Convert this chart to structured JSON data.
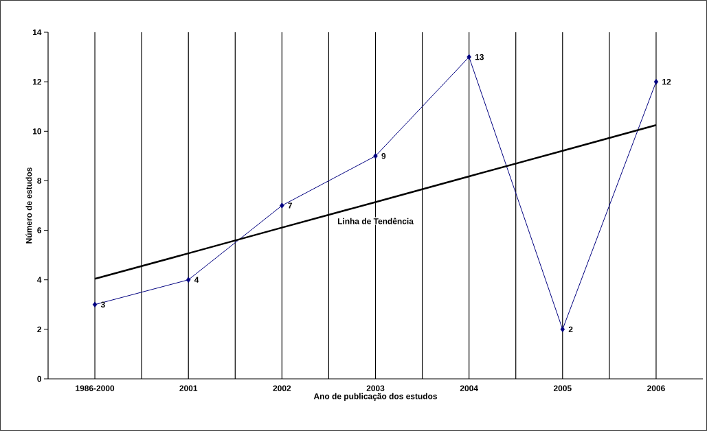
{
  "chart_data": {
    "type": "line",
    "xlabel": "Ano de publicação dos estudos",
    "ylabel": "Número de estudos",
    "categories": [
      "1986-2000",
      "2001",
      "2002",
      "2003",
      "2004",
      "2005",
      "2006"
    ],
    "series": [
      {
        "color": "#000080",
        "values": [
          3,
          4,
          7,
          9,
          13,
          2,
          12
        ],
        "marker": "diamond",
        "data_labels": true
      },
      {
        "name": "Linha de Tendência",
        "color": "#000000",
        "values": [
          4.04,
          5.07,
          6.11,
          7.14,
          8.18,
          9.21,
          10.25
        ],
        "marker": "none"
      }
    ],
    "ylim": [
      0,
      14
    ],
    "yticks": [
      0,
      2,
      4,
      6,
      8,
      10,
      12,
      14
    ],
    "grid": "x"
  }
}
